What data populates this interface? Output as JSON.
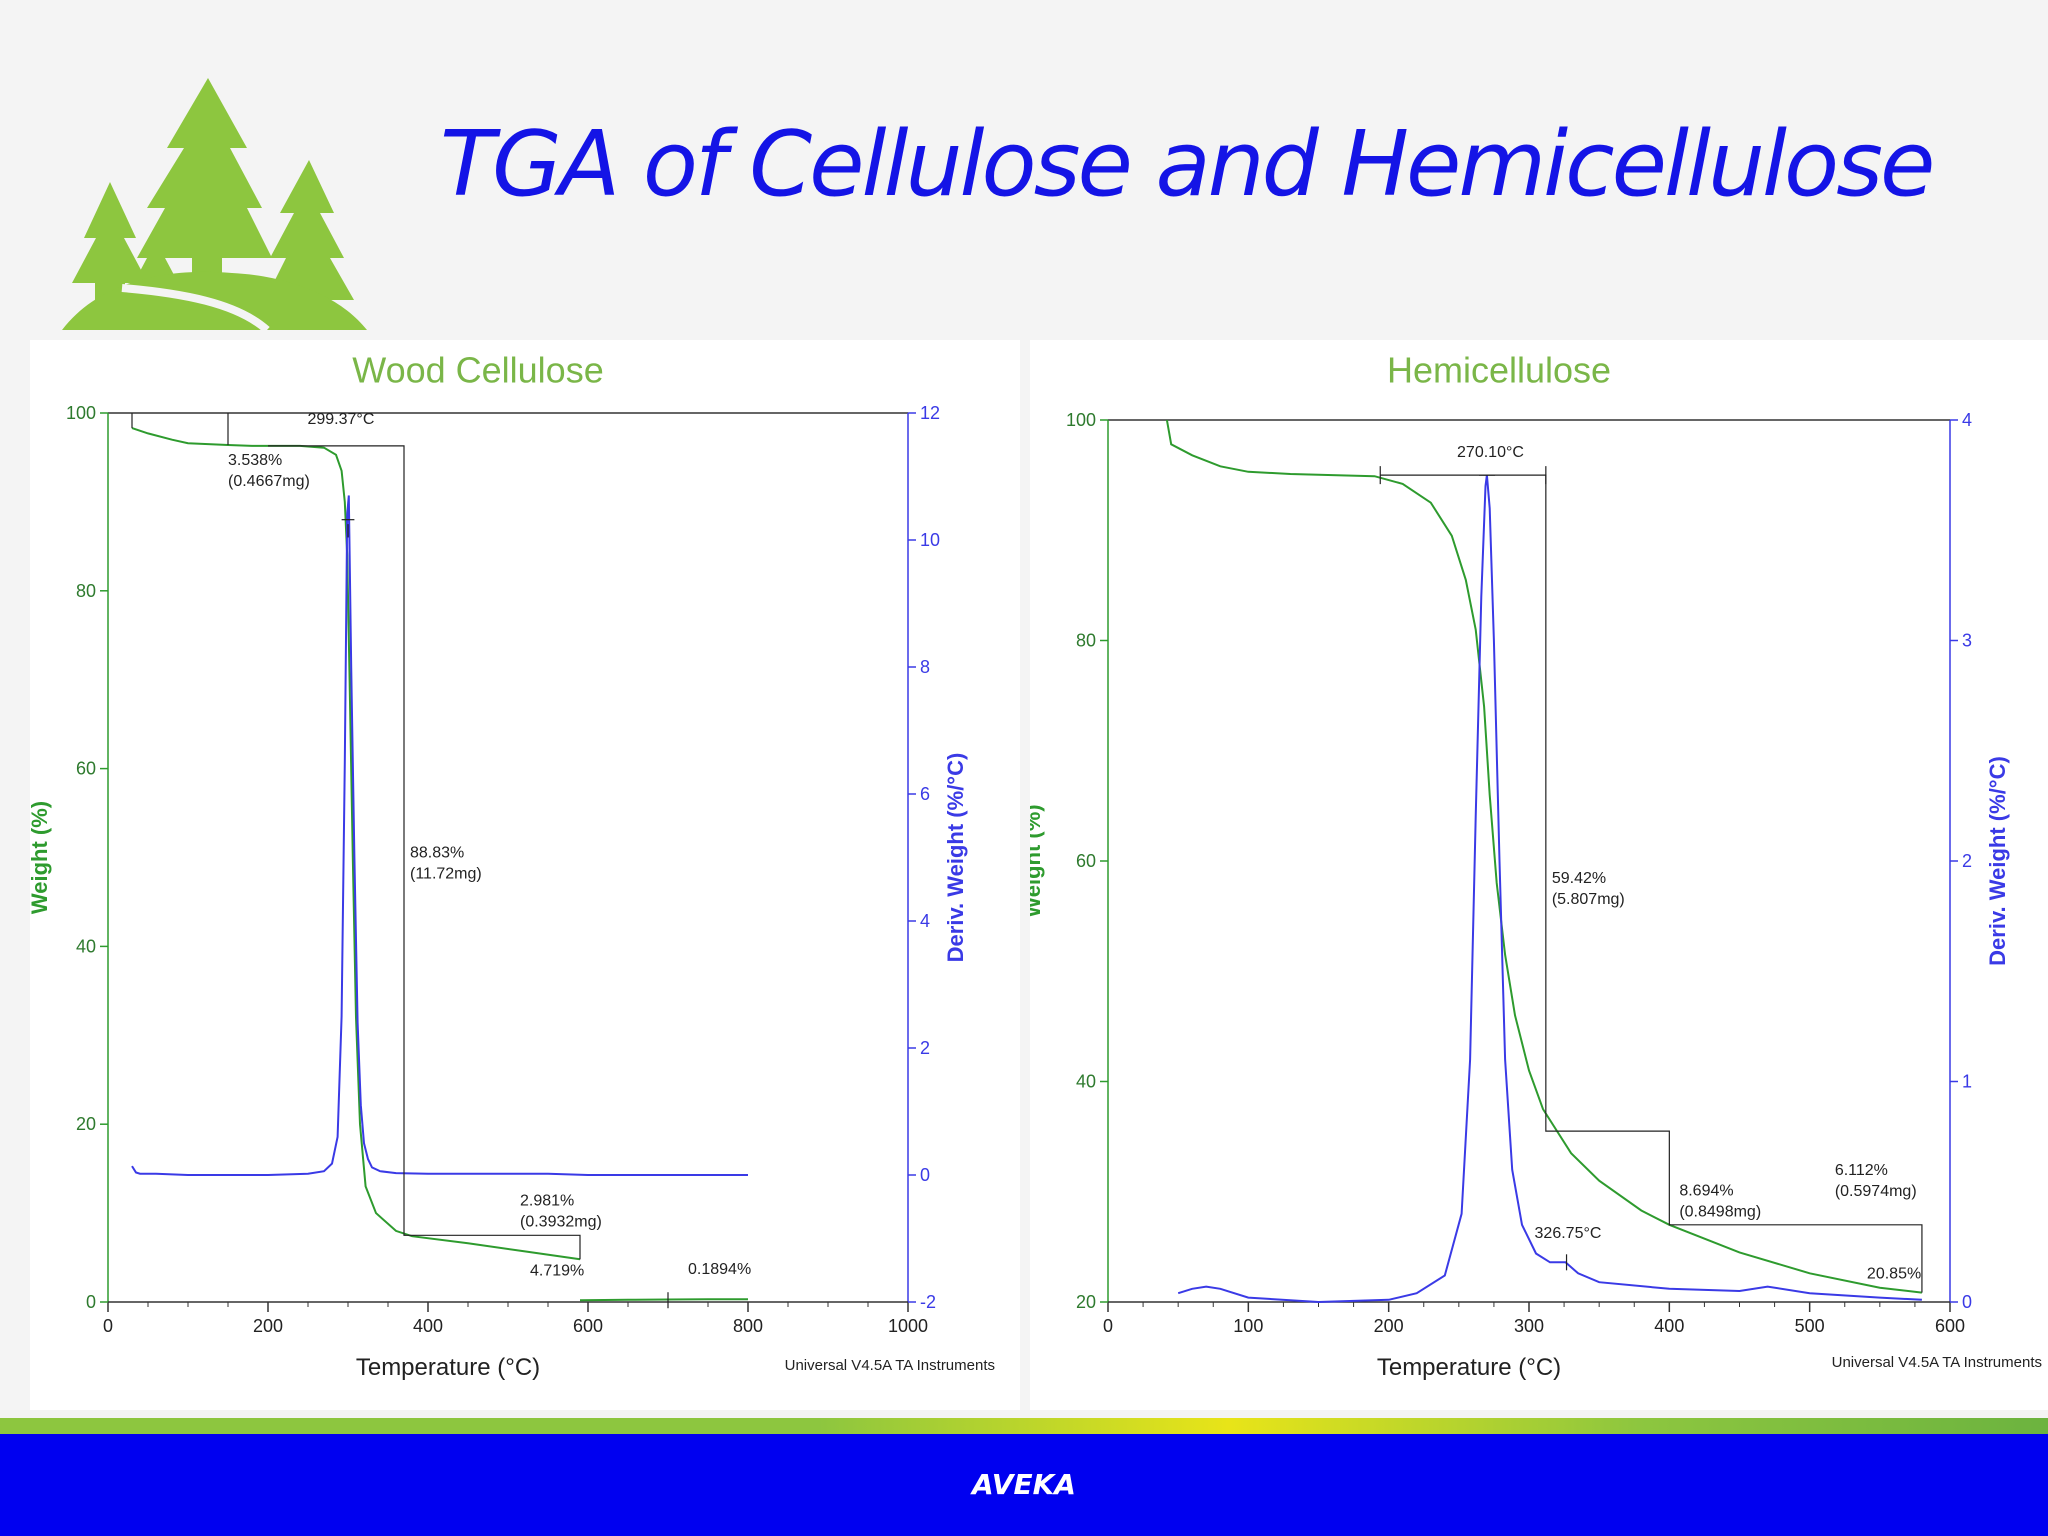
{
  "slide": {
    "title": "TGA of Cellulose and Hemicellulose",
    "footer": "AVEKA",
    "logo_icon": "pine-trees-hill-logo",
    "colors": {
      "title": "#1414e6",
      "footer_bar": "#0000f0",
      "weight_curve": "#2e9b2e",
      "deriv_curve": "#3a3ae6",
      "chart_title": "#7ab648",
      "logo": "#8dc63f"
    }
  },
  "chart_data": [
    {
      "type": "line",
      "title": "Wood Cellulose",
      "xlabel": "Temperature (°C)",
      "ylabel": "Weight (%)",
      "y2label": "Deriv. Weight (%/°C)",
      "xlim": [
        0,
        1000
      ],
      "ylim": [
        0,
        100
      ],
      "y2lim": [
        -2,
        12
      ],
      "xticks": [
        0,
        200,
        400,
        600,
        800,
        1000
      ],
      "yticks": [
        0,
        20,
        40,
        60,
        80,
        100
      ],
      "y2ticks": [
        -2,
        0,
        2,
        4,
        6,
        8,
        10,
        12
      ],
      "credit": "Universal V4.5A TA Instruments",
      "series": [
        {
          "name": "Weight",
          "axis": "left",
          "x": [
            30,
            50,
            80,
            100,
            150,
            180,
            200,
            240,
            270,
            285,
            292,
            296,
            299,
            302,
            306,
            310,
            315,
            322,
            335,
            360,
            380,
            450,
            520,
            590
          ],
          "values": [
            98.3,
            97.7,
            97.0,
            96.6,
            96.4,
            96.3,
            96.3,
            96.3,
            96.1,
            95.3,
            93.5,
            90.0,
            84.0,
            70.0,
            50.0,
            32.0,
            20.0,
            13.0,
            10.0,
            8.0,
            7.4,
            6.6,
            5.7,
            4.8
          ]
        },
        {
          "name": "Weight (tail)",
          "axis": "left",
          "x": [
            590,
            650,
            700,
            750,
            800
          ],
          "values": [
            0.2,
            0.25,
            0.28,
            0.3,
            0.3
          ]
        },
        {
          "name": "Deriv. Weight",
          "axis": "right",
          "x": [
            30,
            35,
            40,
            60,
            100,
            150,
            200,
            250,
            270,
            280,
            287,
            292,
            296,
            299,
            301,
            304,
            308,
            312,
            316,
            320,
            325,
            330,
            340,
            360,
            400,
            450,
            500,
            550,
            600,
            650,
            700,
            750,
            800
          ],
          "values": [
            0.14,
            0.04,
            0.02,
            0.02,
            0.0,
            0.0,
            0.0,
            0.02,
            0.06,
            0.18,
            0.6,
            2.5,
            6.5,
            10.4,
            10.7,
            8.0,
            5.0,
            2.4,
            1.1,
            0.5,
            0.25,
            0.12,
            0.06,
            0.03,
            0.02,
            0.02,
            0.02,
            0.02,
            0.0,
            0.0,
            0.0,
            0.0,
            0.0
          ]
        }
      ],
      "annotations": [
        {
          "text": "299.37°C",
          "x": 299.37,
          "y": 96.3,
          "type": "onset"
        },
        {
          "text": "3.538%",
          "sub": "(0.4667mg)",
          "x": 150,
          "y": 96.4
        },
        {
          "text": "88.83%",
          "sub": "(11.72mg)",
          "x": 370,
          "y": 50
        },
        {
          "text": "2.981%",
          "sub": "(0.3932mg)",
          "x": 590,
          "y": 7.5
        },
        {
          "text": "4.719%",
          "x": 590,
          "y": 4.8
        },
        {
          "text": "0.1894%",
          "x": 700,
          "y": 0.2
        }
      ]
    },
    {
      "type": "line",
      "title": "Hemicellulose",
      "xlabel": "Temperature (°C)",
      "ylabel": "Weight (%)",
      "y2label": "Deriv. Weight (%/°C)",
      "xlim": [
        0,
        600
      ],
      "ylim": [
        20,
        100
      ],
      "y2lim": [
        0,
        4
      ],
      "xticks": [
        0,
        100,
        200,
        300,
        400,
        500,
        600
      ],
      "yticks": [
        20,
        40,
        60,
        80,
        100
      ],
      "y2ticks": [
        0,
        1,
        2,
        3,
        4
      ],
      "credit": "Universal V4.5A TA Instruments",
      "series": [
        {
          "name": "Weight",
          "axis": "left",
          "x": [
            42,
            45,
            60,
            80,
            100,
            130,
            160,
            190,
            210,
            230,
            245,
            255,
            262,
            268,
            272,
            277,
            283,
            290,
            300,
            310,
            330,
            350,
            380,
            400,
            450,
            500,
            550,
            580
          ],
          "values": [
            100,
            97.8,
            96.8,
            95.8,
            95.3,
            95.1,
            95.0,
            94.9,
            94.2,
            92.5,
            89.5,
            85.5,
            81.0,
            74.0,
            66.0,
            58.0,
            51.5,
            46.0,
            41.0,
            37.5,
            33.5,
            31.0,
            28.3,
            27.0,
            24.5,
            22.6,
            21.3,
            20.85
          ]
        },
        {
          "name": "Deriv. Weight",
          "axis": "right",
          "x": [
            50,
            60,
            70,
            80,
            100,
            150,
            200,
            220,
            240,
            252,
            258,
            262,
            266,
            269,
            270,
            272,
            275,
            279,
            283,
            288,
            295,
            305,
            315,
            326,
            335,
            350,
            400,
            450,
            470,
            500,
            550,
            580
          ],
          "values": [
            0.04,
            0.06,
            0.07,
            0.06,
            0.02,
            0.0,
            0.01,
            0.04,
            0.12,
            0.4,
            1.1,
            2.2,
            3.2,
            3.7,
            3.75,
            3.6,
            3.0,
            2.0,
            1.1,
            0.6,
            0.35,
            0.22,
            0.18,
            0.18,
            0.13,
            0.09,
            0.06,
            0.05,
            0.07,
            0.04,
            0.02,
            0.01
          ]
        }
      ],
      "annotations": [
        {
          "text": "270.10°C",
          "x": 270.1,
          "y": 95,
          "type": "onset"
        },
        {
          "text": "59.42%",
          "sub": "(5.807mg)",
          "x": 312,
          "y": 58
        },
        {
          "text": "8.694%",
          "sub": "(0.8498mg)",
          "x": 400,
          "y": 31
        },
        {
          "text": "6.112%",
          "sub": "(0.5974mg)",
          "x": 550,
          "y": 27
        },
        {
          "text": "326.75°C",
          "x": 326.75,
          "y": 23.5
        },
        {
          "text": "20.85%",
          "x": 580,
          "y": 20.85
        }
      ]
    }
  ]
}
